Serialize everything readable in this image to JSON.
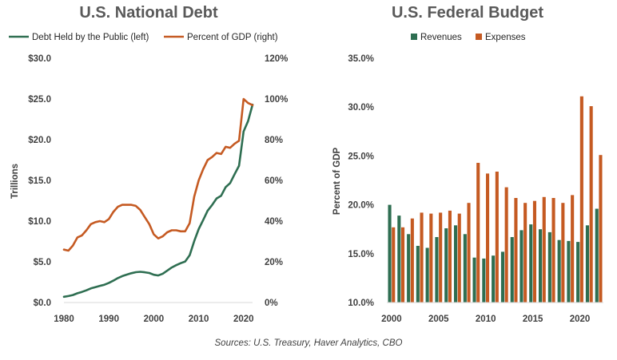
{
  "source": "Sources: U.S. Treasury, Haver Analytics, CBO",
  "colors": {
    "green": "#2e6e51",
    "orange": "#c55a22",
    "text": "#404040",
    "title": "#595959"
  },
  "chart_data": [
    {
      "type": "line",
      "title": "U.S. National Debt",
      "ylabel": "Trillions",
      "ylabel_right": "",
      "x_ticks": [
        "1980",
        "1990",
        "2000",
        "2010",
        "2020"
      ],
      "y_ticks_left": [
        "$0.0",
        "$5.0",
        "$10.0",
        "$15.0",
        "$20.0",
        "$25.0",
        "$30.0"
      ],
      "y_ticks_right": [
        "0%",
        "20%",
        "40%",
        "60%",
        "80%",
        "100%",
        "120%"
      ],
      "ylim_left": [
        0,
        30
      ],
      "ylim_right": [
        0,
        120
      ],
      "xlim": [
        1980,
        2022
      ],
      "legend_position": "top",
      "grid": false,
      "series": [
        {
          "name": "Debt Held by the Public (left)",
          "axis": "left",
          "color": "#2e6e51",
          "x": [
            1980,
            1981,
            1982,
            1983,
            1984,
            1985,
            1986,
            1987,
            1988,
            1989,
            1990,
            1991,
            1992,
            1993,
            1994,
            1995,
            1996,
            1997,
            1998,
            1999,
            2000,
            2001,
            2002,
            2003,
            2004,
            2005,
            2006,
            2007,
            2008,
            2009,
            2010,
            2011,
            2012,
            2013,
            2014,
            2015,
            2016,
            2017,
            2018,
            2019,
            2020,
            2021,
            2022
          ],
          "values": [
            0.71,
            0.79,
            0.92,
            1.14,
            1.3,
            1.5,
            1.74,
            1.89,
            2.05,
            2.19,
            2.41,
            2.69,
            3.0,
            3.25,
            3.43,
            3.6,
            3.73,
            3.77,
            3.72,
            3.63,
            3.41,
            3.32,
            3.54,
            3.91,
            4.3,
            4.59,
            4.83,
            5.04,
            5.8,
            7.54,
            9.02,
            10.13,
            11.28,
            11.98,
            12.78,
            13.12,
            14.17,
            14.67,
            15.75,
            16.8,
            21.02,
            22.28,
            24.3
          ]
        },
        {
          "name": "Percent of GDP (right)",
          "axis": "right",
          "color": "#c55a22",
          "x": [
            1980,
            1981,
            1982,
            1983,
            1984,
            1985,
            1986,
            1987,
            1988,
            1989,
            1990,
            1991,
            1992,
            1993,
            1994,
            1995,
            1996,
            1997,
            1998,
            1999,
            2000,
            2001,
            2002,
            2003,
            2004,
            2005,
            2006,
            2007,
            2008,
            2009,
            2010,
            2011,
            2012,
            2013,
            2014,
            2015,
            2016,
            2017,
            2018,
            2019,
            2020,
            2021,
            2022
          ],
          "values": [
            26,
            25.5,
            28,
            32,
            33,
            35.5,
            38.5,
            39.5,
            40,
            39.5,
            41,
            44.5,
            47,
            48,
            48,
            48,
            47.5,
            45.5,
            42,
            38.5,
            33.5,
            31.5,
            32.5,
            34.5,
            35.5,
            35.5,
            35,
            35,
            39,
            52,
            60,
            65.5,
            70,
            71.5,
            73.5,
            73,
            76.5,
            76,
            78,
            79.5,
            100,
            98,
            97
          ]
        }
      ]
    },
    {
      "type": "bar",
      "title": "U.S. Federal Budget",
      "ylabel": "Percent of GDP",
      "x_ticks": [
        "2000",
        "2005",
        "2010",
        "2015",
        "2020"
      ],
      "y_ticks": [
        "10.0%",
        "15.0%",
        "20.0%",
        "25.0%",
        "30.0%",
        "35.0%"
      ],
      "ylim": [
        10,
        35
      ],
      "legend_position": "top",
      "grid": false,
      "categories": [
        2000,
        2001,
        2002,
        2003,
        2004,
        2005,
        2006,
        2007,
        2008,
        2009,
        2010,
        2011,
        2012,
        2013,
        2014,
        2015,
        2016,
        2017,
        2018,
        2019,
        2020,
        2021,
        2022
      ],
      "series": [
        {
          "name": "Revenues",
          "color": "#2e6e51",
          "values": [
            20.0,
            18.9,
            17.0,
            15.8,
            15.6,
            16.7,
            17.6,
            17.9,
            17.0,
            14.6,
            14.5,
            14.8,
            15.2,
            16.7,
            17.4,
            18.0,
            17.5,
            17.2,
            16.4,
            16.3,
            16.2,
            17.9,
            19.6
          ]
        },
        {
          "name": "Expenses",
          "color": "#c55a22",
          "values": [
            17.7,
            17.7,
            18.6,
            19.2,
            19.1,
            19.2,
            19.4,
            19.1,
            20.2,
            24.3,
            23.2,
            23.4,
            21.8,
            20.7,
            20.2,
            20.4,
            20.8,
            20.7,
            20.2,
            21.0,
            31.1,
            30.1,
            25.1
          ]
        }
      ]
    }
  ]
}
